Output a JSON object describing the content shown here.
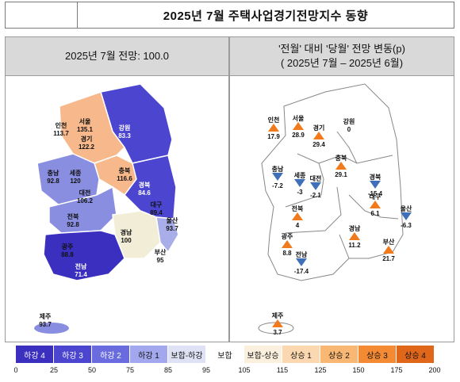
{
  "title": "2025년 7월 주택사업경기전망지수 동향",
  "left_panel": {
    "heading": "2025년 7월 전망: 100.0"
  },
  "right_panel": {
    "heading_line1": "'전월' 대비 '당월' 전망 변동(p)",
    "heading_line2": "( 2025년 7월 – 2025년 6월)"
  },
  "regions": [
    {
      "name": "서울",
      "index": "135.1",
      "change": "28.9",
      "trend": "up"
    },
    {
      "name": "인천",
      "index": "113.7",
      "change": "17.9",
      "trend": "up"
    },
    {
      "name": "경기",
      "index": "122.2",
      "change": "29.4",
      "trend": "up"
    },
    {
      "name": "강원",
      "index": "83.3",
      "change": "0",
      "trend": "flat"
    },
    {
      "name": "충북",
      "index": "116.6",
      "change": "29.1",
      "trend": "up"
    },
    {
      "name": "충남",
      "index": "92.8",
      "change": "-7.2",
      "trend": "down"
    },
    {
      "name": "세종",
      "index": "120",
      "change": "-3",
      "trend": "down"
    },
    {
      "name": "대전",
      "index": "106.2",
      "change": "-2.1",
      "trend": "down"
    },
    {
      "name": "경북",
      "index": "84.6",
      "change": "-15.4",
      "trend": "down"
    },
    {
      "name": "대구",
      "index": "89.4",
      "change": "6.1",
      "trend": "up"
    },
    {
      "name": "울산",
      "index": "93.7",
      "change": "-6.3",
      "trend": "down"
    },
    {
      "name": "전북",
      "index": "92.8",
      "change": "4",
      "trend": "up"
    },
    {
      "name": "경남",
      "index": "100",
      "change": "11.2",
      "trend": "up"
    },
    {
      "name": "부산",
      "index": "95",
      "change": "21.7",
      "trend": "up"
    },
    {
      "name": "광주",
      "index": "88.8",
      "change": "8.8",
      "trend": "up"
    },
    {
      "name": "전남",
      "index": "71.4",
      "change": "-17.4",
      "trend": "down"
    },
    {
      "name": "제주",
      "index": "93.7",
      "change": "3.7",
      "trend": "up"
    }
  ],
  "legend": {
    "categories": [
      {
        "label": "하강 4",
        "color": "#3b2fc0"
      },
      {
        "label": "하강 3",
        "color": "#4b45cf"
      },
      {
        "label": "하강 2",
        "color": "#6b6be0"
      },
      {
        "label": "하강 1",
        "color": "#a3a8ee"
      },
      {
        "label": "보합-하강",
        "color": "#dfe2f5"
      },
      {
        "label": "보합",
        "color": "#ffffff"
      },
      {
        "label": "보합-상승",
        "color": "#fbf0de"
      },
      {
        "label": "상승 1",
        "color": "#fbd8b0"
      },
      {
        "label": "상승 2",
        "color": "#f9b774"
      },
      {
        "label": "상승 3",
        "color": "#f48a33"
      },
      {
        "label": "상승 4",
        "color": "#e0661a"
      }
    ],
    "ticks": [
      "0",
      "25",
      "50",
      "75",
      "85",
      "95",
      "105",
      "115",
      "125",
      "150",
      "175",
      "200"
    ]
  },
  "colors": {
    "seoul_capital": "#f7b98b",
    "chungbuk": "#f7b98b",
    "gangwon": "#4b45cf",
    "gyeongbuk": "#4b45cf",
    "chungnam": "#8a8ee0",
    "jeonbuk": "#8a8ee0",
    "gyeongnam": "#f2edd6",
    "busan": "#aaaee8",
    "jeonnam": "#3b2fc0",
    "jeju": "#8a8ee0",
    "up_marker": "#f07a1c",
    "down_marker": "#3f6fb8"
  },
  "icons": {
    "up": "up-triangle-icon",
    "down": "down-triangle-icon"
  }
}
